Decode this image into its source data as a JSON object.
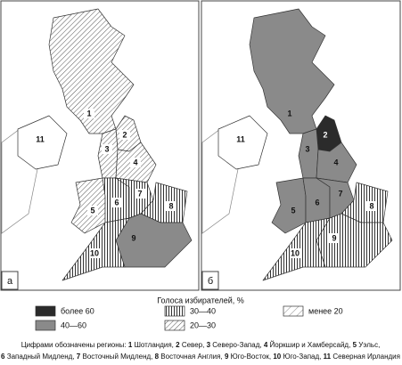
{
  "panels": [
    {
      "label": "а",
      "regions": [
        {
          "label": 1,
          "level": 3
        },
        {
          "label": 2,
          "level": 3
        },
        {
          "label": 3,
          "level": 3
        },
        {
          "label": 4,
          "level": 3
        },
        {
          "label": 5,
          "level": 3
        },
        {
          "label": 6,
          "level": 2
        },
        {
          "label": 7,
          "level": 2
        },
        {
          "label": 8,
          "level": 2
        },
        {
          "label": 9,
          "level": 1
        },
        {
          "label": 10,
          "level": 2
        },
        {
          "label": 11,
          "level": null
        }
      ]
    },
    {
      "label": "б",
      "regions": [
        {
          "label": 1,
          "level": 1
        },
        {
          "label": 2,
          "level": 0
        },
        {
          "label": 3,
          "level": 1
        },
        {
          "label": 4,
          "level": 1
        },
        {
          "label": 5,
          "level": 1
        },
        {
          "label": 6,
          "level": 1
        },
        {
          "label": 7,
          "level": 1
        },
        {
          "label": 8,
          "level": 2
        },
        {
          "label": 9,
          "level": 2
        },
        {
          "label": 10,
          "level": 2
        },
        {
          "label": 11,
          "level": null
        }
      ]
    }
  ],
  "legend": {
    "title": "Голоса избирателей, %",
    "items": [
      "более 60",
      "40—60",
      "30—40",
      "20—30",
      "менее 20"
    ]
  },
  "caption": {
    "prefix": "Цифрами обозначены регионы:",
    "regions": [
      {
        "number": "1",
        "name": "Шотландия,"
      },
      {
        "number": "2",
        "name": "Север,"
      },
      {
        "number": "3",
        "name": "Северо-Запад,"
      },
      {
        "number": "4",
        "name": "Йоркшир и Хамберсайд,"
      },
      {
        "number": "5",
        "name": "Уэльс,"
      },
      {
        "number": "6",
        "name": "Западный Мидленд,"
      },
      {
        "number": "7",
        "name": "Восточный Мидленд,"
      },
      {
        "number": "8",
        "name": "Восточная Англия,"
      },
      {
        "number": "9",
        "name": "Юго-Восток,"
      },
      {
        "number": "10",
        "name": "Юго-Запад,"
      },
      {
        "number": "11",
        "name": "Северная Ирландия"
      }
    ]
  }
}
